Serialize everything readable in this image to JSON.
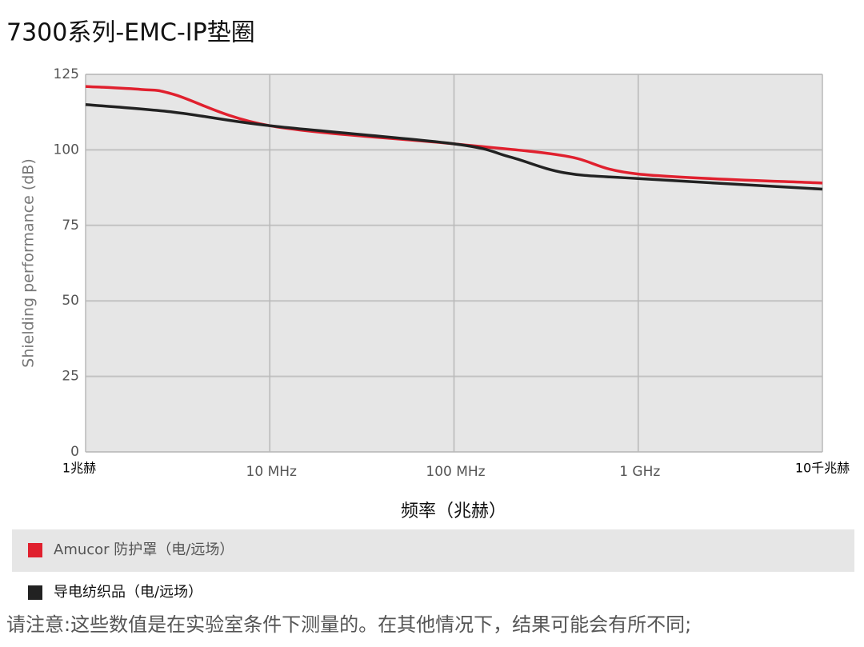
{
  "chart_data": {
    "type": "line",
    "title": "7300系列-EMC-IP垫圈",
    "x_label": "频率（兆赫）",
    "y_label": "Shielding performance (dB)",
    "xscale": "log",
    "xlim": [
      1,
      10000
    ],
    "xticks": [
      {
        "value": 1,
        "label": "1兆赫"
      },
      {
        "value": 10,
        "label": "10 MHz"
      },
      {
        "value": 100,
        "label": "100 MHz"
      },
      {
        "value": 1000,
        "label": "1 GHz"
      },
      {
        "value": 10000,
        "label": "10千兆赫"
      }
    ],
    "ylim": [
      0,
      125
    ],
    "yticks": [
      0,
      25,
      50,
      75,
      100,
      125
    ],
    "grid": true,
    "series": [
      {
        "name": "Amucor 防护罩（电/远场）",
        "color": "#e0202e",
        "x": [
          1,
          2,
          3,
          10,
          100,
          400,
          1000,
          10000
        ],
        "values": [
          121,
          120,
          118.4,
          108,
          102,
          98,
          92,
          89
        ]
      },
      {
        "name": "导电纺织品（电/远场）",
        "color": "#222222",
        "x": [
          1,
          3,
          10,
          100,
          200,
          400,
          1000,
          10000
        ],
        "values": [
          115,
          112.5,
          108,
          102,
          97.7,
          92.4,
          90.5,
          87
        ]
      }
    ],
    "footnote": "请注意:这些数值是在实验室条件下测量的。在其他情况下，结果可能会有所不同;"
  }
}
